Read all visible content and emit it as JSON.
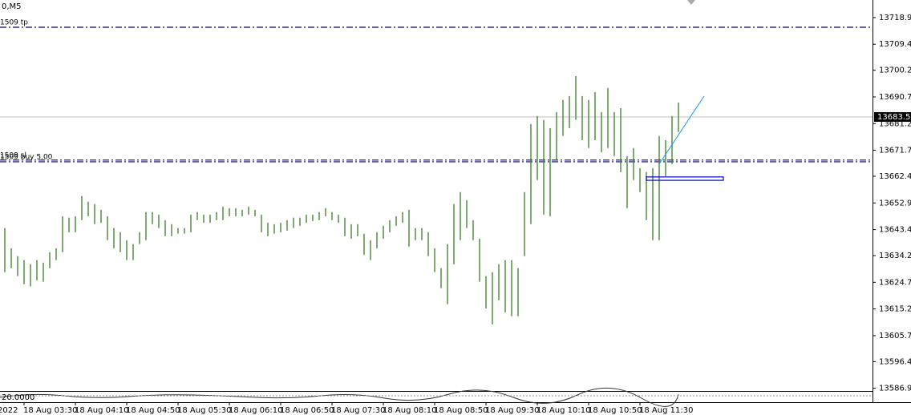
{
  "chart_data": {
    "type": "ohlc",
    "title": "0,M5",
    "color": "#3a7d2a",
    "xlim": [
      -0.75,
      135.25
    ],
    "ylim": [
      13586.0,
      13725.2
    ],
    "yticks": [
      13718.95,
      13709.45,
      {
        "value": 13700.2,
        "label": "13700.20"
      },
      {
        "value": 13690.7,
        "label": "13690.70"
      },
      {
        "value": 13681.2,
        "label": "13681.20"
      },
      {
        "value": 13671.7,
        "label": "13671.70"
      },
      13662.45,
      13652.95,
      13643.45,
      {
        "value": 13634.2,
        "label": "13634.20"
      },
      {
        "value": 13624.7,
        "label": "13624.70"
      },
      {
        "value": 13615.2,
        "label": "13615.20"
      },
      {
        "value": 13605.7,
        "label": "13605.70"
      },
      13596.45,
      13586.95
    ],
    "xticks": [
      {
        "value": -1,
        "label": "2022"
      },
      {
        "value": 3,
        "label": "18 Aug 03:30"
      },
      {
        "value": 11,
        "label": "18 Aug 04:10"
      },
      {
        "value": 19,
        "label": "18 Aug 04:50"
      },
      {
        "value": 27,
        "label": "18 Aug 05:30"
      },
      {
        "value": 35,
        "label": "18 Aug 06:10"
      },
      {
        "value": 43,
        "label": "18 Aug 06:50"
      },
      {
        "value": 51,
        "label": "18 Aug 07:30"
      },
      {
        "value": 59,
        "label": "18 Aug 08:10"
      },
      {
        "value": 67,
        "label": "18 Aug 08:50"
      },
      {
        "value": 75,
        "label": "18 Aug 09:30"
      },
      {
        "value": 83,
        "label": "18 Aug 10:10"
      },
      {
        "value": 91,
        "label": "18 Aug 10:50"
      },
      {
        "value": 99,
        "label": "18 Aug 11:30"
      }
    ],
    "high": [
      13644.0,
      13636.8,
      13634.0,
      13632.6,
      13631.1,
      13632.6,
      13631.7,
      13635.4,
      13636.8,
      13648.2,
      13647.7,
      13648.2,
      13655.4,
      13653.4,
      13652.5,
      13650.5,
      13648.2,
      13644.0,
      13642.5,
      13639.7,
      13638.3,
      13642.5,
      13649.7,
      13649.7,
      13648.8,
      13646.8,
      13645.4,
      13644.0,
      13644.0,
      13648.8,
      13649.7,
      13648.8,
      13648.8,
      13649.7,
      13651.6,
      13651.1,
      13651.1,
      13650.5,
      13651.6,
      13650.5,
      13648.8,
      13645.9,
      13645.4,
      13645.9,
      13646.8,
      13647.7,
      13647.7,
      13648.8,
      13648.8,
      13649.7,
      13651.1,
      13649.7,
      13648.8,
      13647.7,
      13645.4,
      13645.4,
      13642.0,
      13639.7,
      13642.5,
      13644.8,
      13646.8,
      13648.2,
      13649.7,
      13650.5,
      13644.0,
      13644.0,
      13642.5,
      13636.8,
      13629.7,
      13638.3,
      13652.5,
      13656.8,
      13653.9,
      13646.8,
      13640.2,
      13626.9,
      13628.3,
      13631.1,
      13632.6,
      13632.6,
      13629.7,
      13656.8,
      13681.0,
      13683.9,
      13682.5,
      13679.6,
      13685.3,
      13689.6,
      13691.0,
      13698.1,
      13691.0,
      13689.6,
      13692.4,
      13685.3,
      13693.9,
      13685.3,
      13686.7,
      13669.6,
      13672.5,
      13665.3,
      13663.9,
      13665.3,
      13676.8,
      13675.3,
      13683.9,
      13688.7
    ],
    "low": [
      13628.3,
      13629.7,
      13626.9,
      13624.0,
      13623.2,
      13625.4,
      13624.9,
      13629.7,
      13632.6,
      13635.4,
      13642.5,
      13642.5,
      13646.8,
      13648.2,
      13645.4,
      13645.9,
      13639.7,
      13636.8,
      13635.4,
      13632.6,
      13632.6,
      13638.3,
      13639.7,
      13645.4,
      13644.0,
      13641.1,
      13641.1,
      13642.0,
      13642.0,
      13642.5,
      13646.8,
      13645.9,
      13645.9,
      13646.8,
      13646.8,
      13648.2,
      13648.2,
      13648.2,
      13648.8,
      13648.2,
      13642.5,
      13641.1,
      13642.0,
      13642.5,
      13643.1,
      13644.0,
      13644.8,
      13645.9,
      13646.5,
      13646.8,
      13648.2,
      13646.8,
      13645.9,
      13641.1,
      13640.2,
      13641.1,
      13634.5,
      13632.6,
      13636.8,
      13640.2,
      13642.5,
      13644.8,
      13645.9,
      13637.4,
      13639.7,
      13639.7,
      13634.0,
      13628.3,
      13622.6,
      13616.9,
      13631.1,
      13639.7,
      13644.0,
      13639.7,
      13624.9,
      13615.4,
      13609.7,
      13618.3,
      13614.0,
      13612.6,
      13612.6,
      13634.0,
      13645.4,
      13661.1,
      13648.8,
      13648.2,
      13668.2,
      13676.8,
      13679.6,
      13682.5,
      13675.3,
      13672.5,
      13675.3,
      13671.0,
      13672.5,
      13669.6,
      13663.9,
      13651.1,
      13661.1,
      13656.8,
      13646.8,
      13639.7,
      13639.7,
      13662.5,
      13666.8,
      13678.2
    ],
    "levels": [
      {
        "label": "1509 tp",
        "value": 13715.5
      },
      {
        "label": "1509 sl",
        "value": 13668.2
      },
      {
        "label": "1509 buy 5.00",
        "value": 13667.6
      }
    ],
    "level_color": "#00008b",
    "last_price": 13683.55,
    "trendline": {
      "x": [
        102,
        109
      ],
      "y": [
        13666.8,
        13691.0
      ],
      "color": "#1e90ff"
    },
    "rectangle": {
      "x": [
        100,
        112
      ],
      "y": [
        13662.2,
        13661.0
      ],
      "color": "#0000cd"
    },
    "indicator_label": "20.0000"
  }
}
